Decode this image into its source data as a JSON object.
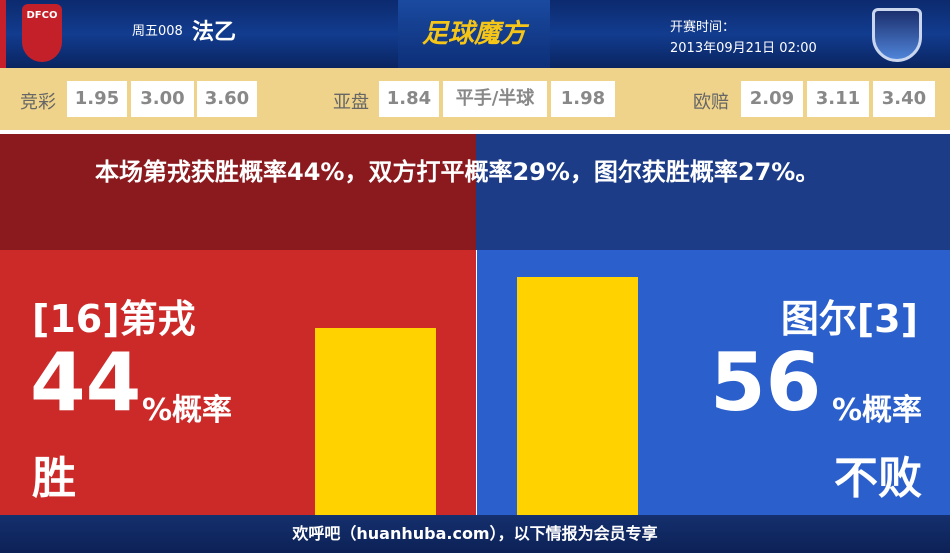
{
  "header": {
    "home_logo_text": "DFCO",
    "league_code": "周五008",
    "league": "法乙",
    "brand": "足球魔方",
    "kickoff_label": "开赛时间：",
    "kickoff_time": "2013年09月21日 02:00"
  },
  "odds": {
    "jingcai": {
      "label": "竞彩",
      "values": [
        "1.95",
        "3.00",
        "3.60"
      ]
    },
    "asian": {
      "label": "亚盘",
      "values": [
        "1.84",
        "平手/半球",
        "1.98"
      ]
    },
    "euro": {
      "label": "欧赔",
      "values": [
        "2.09",
        "3.11",
        "3.40"
      ]
    }
  },
  "summary": "本场第戎获胜概率44%，双方打平概率29%，图尔获胜概率27%。",
  "home": {
    "team": "[16]第戎",
    "percent": "44",
    "percent_suffix": "%概率",
    "outcome": "胜",
    "bar_value": 44,
    "color": "#cc2929"
  },
  "away": {
    "team": "图尔[3]",
    "percent": "56",
    "percent_suffix": "%概率",
    "outcome": "不败",
    "bar_value": 56,
    "color": "#2b5fcb"
  },
  "bar_color": "#ffd200",
  "footer": "欢呼吧（huanhuba.com），以下情报为会员专享"
}
